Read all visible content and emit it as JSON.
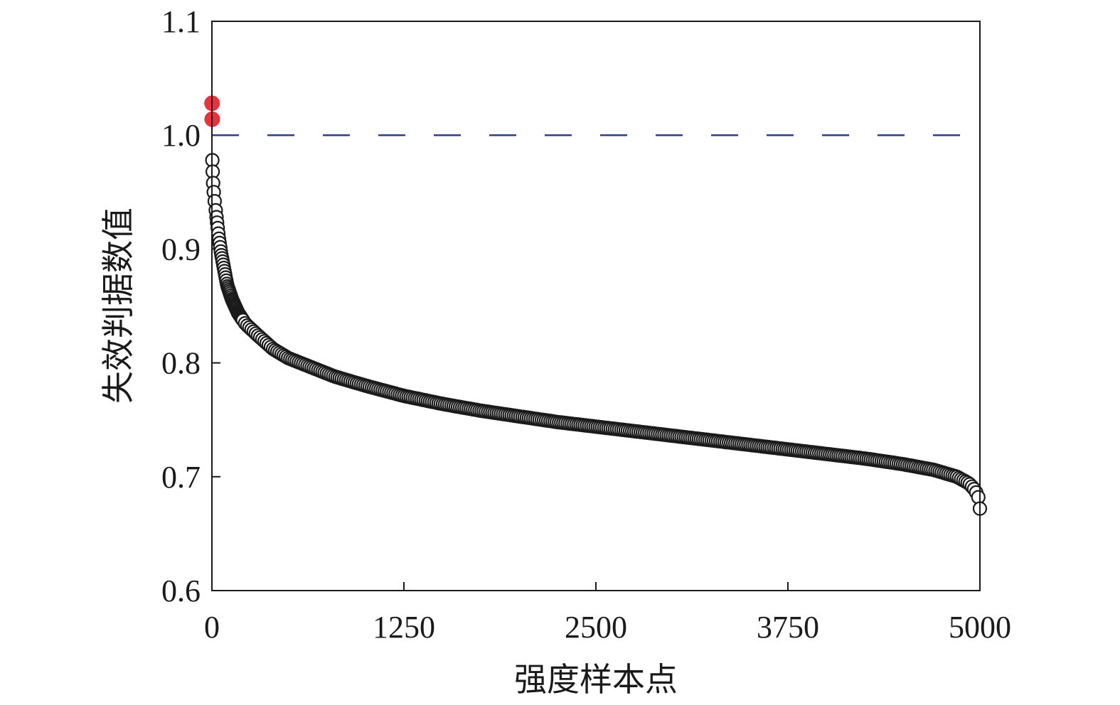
{
  "chart_data": {
    "type": "scatter",
    "title": "",
    "xlabel": "强度样本点",
    "ylabel": "失效判据数值",
    "xlim": [
      0,
      5000
    ],
    "ylim": [
      0.6,
      1.1
    ],
    "xticks": [
      0,
      1250,
      2500,
      3750,
      5000
    ],
    "xtick_labels": [
      "0",
      "1250",
      "2500",
      "3750",
      "5000"
    ],
    "yticks": [
      0.6,
      0.7,
      0.8,
      0.9,
      1.0,
      1.1
    ],
    "ytick_labels": [
      "0.6",
      "0.7",
      "0.8",
      "0.9",
      "1.0",
      "1.1"
    ],
    "grid": false,
    "threshold": {
      "y": 1.0,
      "style": "dashed",
      "color": "#2e3f8f"
    },
    "colors": {
      "failed": "#e8323f",
      "sample": "#1a1a1a",
      "sample_fill": "#ffffff",
      "frame": "#1a1a1a"
    },
    "series": [
      {
        "marker": "filled-circle",
        "color": "#e8323f",
        "points": [
          [
            1,
            1.028
          ],
          [
            2,
            1.014
          ]
        ]
      },
      {
        "marker": "open-circle",
        "color": "#1a1a1a",
        "curve_points": [
          [
            3,
            0.978
          ],
          [
            5,
            0.968
          ],
          [
            8,
            0.958
          ],
          [
            12,
            0.95
          ],
          [
            18,
            0.942
          ],
          [
            25,
            0.934
          ],
          [
            35,
            0.922
          ],
          [
            45,
            0.91
          ],
          [
            60,
            0.896
          ],
          [
            80,
            0.882
          ],
          [
            100,
            0.868
          ],
          [
            130,
            0.856
          ],
          [
            170,
            0.844
          ],
          [
            220,
            0.834
          ],
          [
            300,
            0.824
          ],
          [
            400,
            0.812
          ],
          [
            500,
            0.804
          ],
          [
            650,
            0.796
          ],
          [
            800,
            0.788
          ],
          [
            1000,
            0.78
          ],
          [
            1250,
            0.771
          ],
          [
            1500,
            0.764
          ],
          [
            1750,
            0.758
          ],
          [
            2000,
            0.753
          ],
          [
            2250,
            0.748
          ],
          [
            2500,
            0.744
          ],
          [
            2750,
            0.74
          ],
          [
            3000,
            0.736
          ],
          [
            3250,
            0.732
          ],
          [
            3500,
            0.728
          ],
          [
            3750,
            0.724
          ],
          [
            4000,
            0.72
          ],
          [
            4250,
            0.716
          ],
          [
            4500,
            0.711
          ],
          [
            4700,
            0.706
          ],
          [
            4850,
            0.7
          ],
          [
            4930,
            0.694
          ],
          [
            4970,
            0.688
          ],
          [
            4990,
            0.682
          ],
          [
            5000,
            0.672
          ]
        ]
      }
    ]
  }
}
